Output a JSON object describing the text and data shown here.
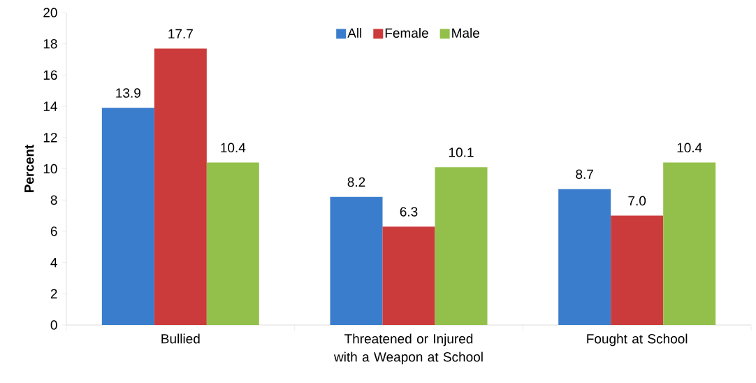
{
  "chart_data": {
    "type": "bar",
    "ylabel": "Percent",
    "categories": [
      "Bullied",
      "Threatened or Injured with a Weapon at School",
      "Fought at School"
    ],
    "series": [
      {
        "name": "All",
        "color": "#3a7dcc",
        "values": [
          13.9,
          8.2,
          8.7
        ],
        "value_labels": [
          "13.9",
          "8.2",
          "8.7"
        ]
      },
      {
        "name": "Female",
        "color": "#cc3b3b",
        "values": [
          17.7,
          6.3,
          7.0
        ],
        "value_labels": [
          "17.7",
          "6.3",
          "7.0"
        ]
      },
      {
        "name": "Male",
        "color": "#93c04b",
        "values": [
          10.4,
          10.1,
          10.4
        ],
        "value_labels": [
          "10.4",
          "10.1",
          "10.4"
        ]
      }
    ],
    "ylim": [
      0,
      20
    ],
    "yticks": [
      0,
      2,
      4,
      6,
      8,
      10,
      12,
      14,
      16,
      18,
      20
    ],
    "legend": "top"
  }
}
